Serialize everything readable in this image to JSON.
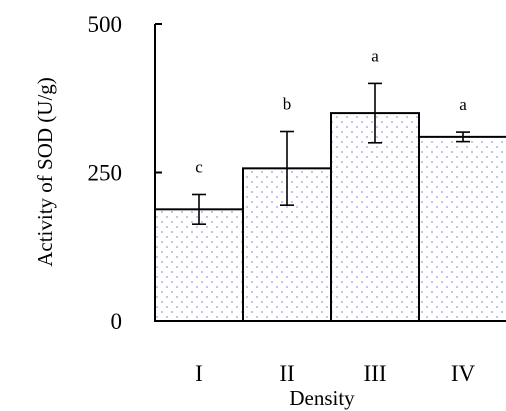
{
  "chart_data": {
    "type": "bar",
    "title": "",
    "xlabel": "Density",
    "ylabel": "Activity of SOD (U/g)",
    "categories": [
      "I",
      "II",
      "III",
      "IV"
    ],
    "values": [
      188,
      257,
      350,
      310
    ],
    "error": [
      25,
      62,
      50,
      8
    ],
    "significance_letters": [
      "c",
      "b",
      "a",
      "a"
    ],
    "ylim": [
      0,
      500
    ],
    "yticks": [
      0,
      250,
      500
    ],
    "grid": false,
    "legend": "none",
    "bar_fill": "#ffffff",
    "bar_dot_color": "#9a9ad8",
    "bar_edge_color": "#000000"
  }
}
